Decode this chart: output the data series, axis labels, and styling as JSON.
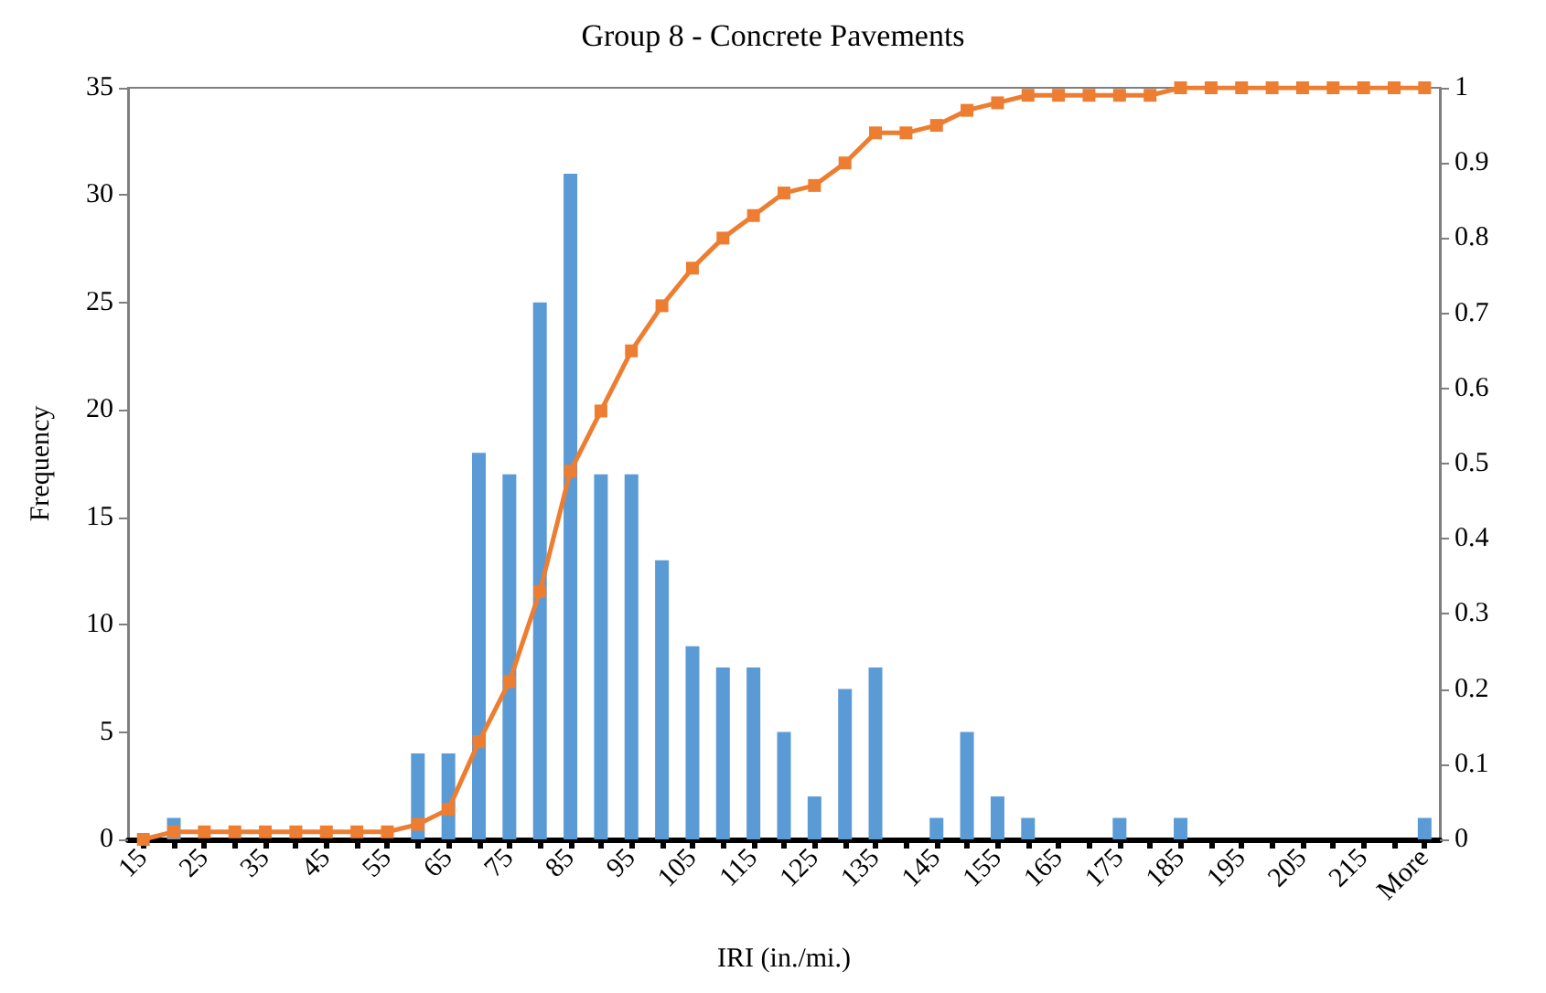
{
  "chart_data": {
    "type": "bar",
    "title": "Group 8 - Concrete Pavements",
    "xlabel": "IRI (in./mi.)",
    "ylabel": "Frequency",
    "categories": [
      "15",
      null,
      "25",
      null,
      "35",
      null,
      "45",
      null,
      "55",
      null,
      "65",
      null,
      "75",
      null,
      "85",
      null,
      "95",
      null,
      "105",
      null,
      "115",
      null,
      "125",
      null,
      "135",
      null,
      "145",
      null,
      "155",
      null,
      "165",
      null,
      "175",
      null,
      "185",
      null,
      "195",
      null,
      "205",
      null,
      "215",
      null,
      "More"
    ],
    "series": [
      {
        "color": "#5b9bd5",
        "values": [
          0,
          1,
          0,
          0,
          0,
          0,
          0,
          0,
          0,
          4,
          4,
          18,
          17,
          25,
          31,
          17,
          17,
          13,
          9,
          8,
          8,
          5,
          2,
          7,
          8,
          0,
          1,
          5,
          2,
          1,
          0,
          0,
          1,
          0,
          1,
          0,
          0,
          0,
          0,
          0,
          0,
          0,
          1
        ]
      },
      {
        "type": "line",
        "axis": "y2",
        "color": "#ed7d31",
        "marker": "square",
        "values": [
          0,
          0.01,
          0.01,
          0.01,
          0.01,
          0.01,
          0.01,
          0.01,
          0.01,
          0.02,
          0.04,
          0.13,
          0.21,
          0.33,
          0.49,
          0.57,
          0.65,
          0.71,
          0.76,
          0.8,
          0.83,
          0.86,
          0.87,
          0.9,
          0.94,
          0.94,
          0.95,
          0.97,
          0.98,
          0.99,
          0.99,
          0.99,
          0.99,
          0.99,
          1,
          1,
          1,
          1,
          1,
          1,
          1,
          1,
          1
        ]
      }
    ],
    "ylim": [
      0,
      35
    ],
    "yticks": [
      0,
      5,
      10,
      15,
      20,
      25,
      30,
      35
    ],
    "y2lim": [
      0,
      1
    ],
    "y2ticks": [
      0,
      0.1,
      0.2,
      0.3,
      0.4,
      0.5,
      0.6,
      0.7,
      0.8,
      0.9,
      1
    ],
    "grid": false
  }
}
